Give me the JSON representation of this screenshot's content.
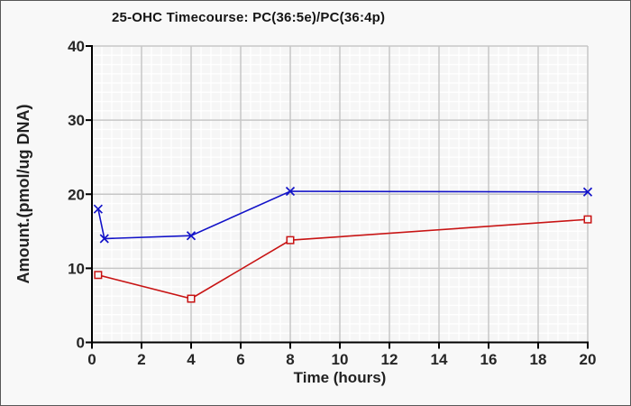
{
  "chart_data": {
    "type": "line",
    "title": "25-OHC Timecourse: PC(36:5e)/PC(36:4p)",
    "xlabel": "Time (hours)",
    "ylabel": "Amount.(pmol/ug DNA)",
    "xlim": [
      0,
      20
    ],
    "ylim": [
      0,
      40
    ],
    "xticks": [
      0,
      2,
      4,
      6,
      8,
      10,
      12,
      14,
      16,
      18,
      20
    ],
    "yticks": [
      0,
      10,
      20,
      30,
      40
    ],
    "grid": {
      "major": true,
      "minor": true,
      "x_minor_divisions": 5,
      "y_minor_divisions": 8
    },
    "legend_position": "none",
    "series": [
      {
        "name": "blue-series",
        "color": "#1212c8",
        "marker": "x",
        "x": [
          0.25,
          0.5,
          4,
          8,
          20
        ],
        "y": [
          18,
          14,
          14.4,
          20.4,
          20.3
        ]
      },
      {
        "name": "red-series",
        "color": "#c81414",
        "marker": "open-square",
        "x": [
          0.25,
          4,
          8,
          20
        ],
        "y": [
          9.1,
          5.9,
          13.8,
          16.6
        ]
      }
    ]
  },
  "colors": {
    "background": "#f8f8f8",
    "plot_background": "#f6f6f6",
    "grid_major": "#c6c6c6",
    "grid_minor": "#ffffff",
    "axis": "#000000",
    "tick_text": "#262626",
    "frame_border": "#585858"
  }
}
